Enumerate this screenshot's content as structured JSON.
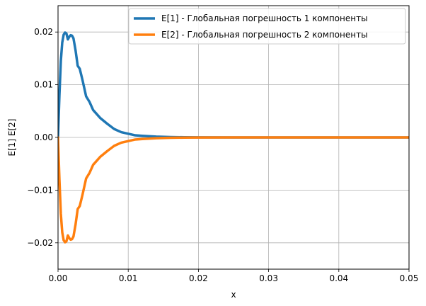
{
  "chart_data": {
    "type": "line",
    "xlabel": "x",
    "ylabel": "E[1]   E[2]",
    "xlim": [
      0,
      0.05
    ],
    "ylim": [
      -0.025,
      0.025
    ],
    "x_ticks": [
      "0.00",
      "0.01",
      "0.02",
      "0.03",
      "0.04",
      "0.05"
    ],
    "y_ticks": [
      "−0.02",
      "−0.01",
      "0.00",
      "0.01",
      "0.02"
    ],
    "grid": true,
    "legend_position": "top-right",
    "series": [
      {
        "name": "E[1] - Глобальная погрешность 1 компоненты",
        "color": "#1f77b4",
        "x": [
          0,
          0.0002,
          0.0004,
          0.0006,
          0.0008,
          0.001,
          0.0012,
          0.0014,
          0.0016,
          0.0018,
          0.002,
          0.0022,
          0.0025,
          0.0028,
          0.0031,
          0.0035,
          0.004,
          0.0045,
          0.005,
          0.006,
          0.007,
          0.008,
          0.009,
          0.01,
          0.011,
          0.012,
          0.014,
          0.016,
          0.018,
          0.02,
          0.025,
          0.03,
          0.04,
          0.05
        ],
        "y": [
          0,
          0.008,
          0.0145,
          0.018,
          0.0195,
          0.0199,
          0.0197,
          0.0186,
          0.0191,
          0.0194,
          0.0193,
          0.0188,
          0.0165,
          0.0136,
          0.013,
          0.0108,
          0.0078,
          0.0067,
          0.0052,
          0.0037,
          0.0026,
          0.0016,
          0.001,
          0.0007,
          0.0004,
          0.0003,
          0.00015,
          7e-05,
          3e-05,
          1e-05,
          0,
          0,
          0,
          0
        ]
      },
      {
        "name": "E[2] - Глобальная погрешность 2 компоненты",
        "color": "#ff7f0e",
        "x": [
          0,
          0.0002,
          0.0004,
          0.0006,
          0.0008,
          0.001,
          0.0012,
          0.0014,
          0.0016,
          0.0018,
          0.002,
          0.0022,
          0.0025,
          0.0028,
          0.0031,
          0.0035,
          0.004,
          0.0045,
          0.005,
          0.006,
          0.007,
          0.008,
          0.009,
          0.01,
          0.011,
          0.012,
          0.014,
          0.016,
          0.018,
          0.02,
          0.025,
          0.03,
          0.04,
          0.05
        ],
        "y": [
          0,
          -0.008,
          -0.0145,
          -0.018,
          -0.0195,
          -0.0199,
          -0.0197,
          -0.0186,
          -0.0191,
          -0.0194,
          -0.0193,
          -0.0188,
          -0.0165,
          -0.0136,
          -0.013,
          -0.0108,
          -0.0078,
          -0.0067,
          -0.0052,
          -0.0037,
          -0.0026,
          -0.0016,
          -0.001,
          -0.0007,
          -0.0004,
          -0.0003,
          -0.00015,
          -7e-05,
          -3e-05,
          -1e-05,
          0,
          0,
          0,
          0
        ]
      }
    ]
  }
}
